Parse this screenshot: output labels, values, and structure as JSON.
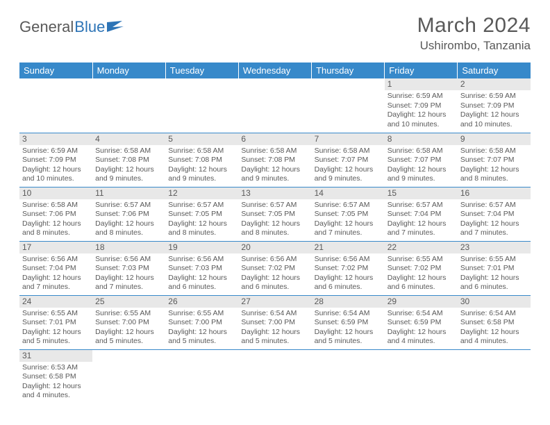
{
  "logo": {
    "text_a": "General",
    "text_b": "Blue"
  },
  "header": {
    "month_title": "March 2024",
    "location": "Ushirombo, Tanzania"
  },
  "colors": {
    "accent": "#3789ca",
    "header_text": "#ffffff",
    "daynum_bg": "#e8e8e8",
    "body_text": "#595959"
  },
  "weekdays": [
    "Sunday",
    "Monday",
    "Tuesday",
    "Wednesday",
    "Thursday",
    "Friday",
    "Saturday"
  ],
  "cells": [
    {
      "day": "",
      "text": ""
    },
    {
      "day": "",
      "text": ""
    },
    {
      "day": "",
      "text": ""
    },
    {
      "day": "",
      "text": ""
    },
    {
      "day": "",
      "text": ""
    },
    {
      "day": "1",
      "text": "Sunrise: 6:59 AM\nSunset: 7:09 PM\nDaylight: 12 hours and 10 minutes."
    },
    {
      "day": "2",
      "text": "Sunrise: 6:59 AM\nSunset: 7:09 PM\nDaylight: 12 hours and 10 minutes."
    },
    {
      "day": "3",
      "text": "Sunrise: 6:59 AM\nSunset: 7:09 PM\nDaylight: 12 hours and 10 minutes."
    },
    {
      "day": "4",
      "text": "Sunrise: 6:58 AM\nSunset: 7:08 PM\nDaylight: 12 hours and 9 minutes."
    },
    {
      "day": "5",
      "text": "Sunrise: 6:58 AM\nSunset: 7:08 PM\nDaylight: 12 hours and 9 minutes."
    },
    {
      "day": "6",
      "text": "Sunrise: 6:58 AM\nSunset: 7:08 PM\nDaylight: 12 hours and 9 minutes."
    },
    {
      "day": "7",
      "text": "Sunrise: 6:58 AM\nSunset: 7:07 PM\nDaylight: 12 hours and 9 minutes."
    },
    {
      "day": "8",
      "text": "Sunrise: 6:58 AM\nSunset: 7:07 PM\nDaylight: 12 hours and 9 minutes."
    },
    {
      "day": "9",
      "text": "Sunrise: 6:58 AM\nSunset: 7:07 PM\nDaylight: 12 hours and 8 minutes."
    },
    {
      "day": "10",
      "text": "Sunrise: 6:58 AM\nSunset: 7:06 PM\nDaylight: 12 hours and 8 minutes."
    },
    {
      "day": "11",
      "text": "Sunrise: 6:57 AM\nSunset: 7:06 PM\nDaylight: 12 hours and 8 minutes."
    },
    {
      "day": "12",
      "text": "Sunrise: 6:57 AM\nSunset: 7:05 PM\nDaylight: 12 hours and 8 minutes."
    },
    {
      "day": "13",
      "text": "Sunrise: 6:57 AM\nSunset: 7:05 PM\nDaylight: 12 hours and 8 minutes."
    },
    {
      "day": "14",
      "text": "Sunrise: 6:57 AM\nSunset: 7:05 PM\nDaylight: 12 hours and 7 minutes."
    },
    {
      "day": "15",
      "text": "Sunrise: 6:57 AM\nSunset: 7:04 PM\nDaylight: 12 hours and 7 minutes."
    },
    {
      "day": "16",
      "text": "Sunrise: 6:57 AM\nSunset: 7:04 PM\nDaylight: 12 hours and 7 minutes."
    },
    {
      "day": "17",
      "text": "Sunrise: 6:56 AM\nSunset: 7:04 PM\nDaylight: 12 hours and 7 minutes."
    },
    {
      "day": "18",
      "text": "Sunrise: 6:56 AM\nSunset: 7:03 PM\nDaylight: 12 hours and 7 minutes."
    },
    {
      "day": "19",
      "text": "Sunrise: 6:56 AM\nSunset: 7:03 PM\nDaylight: 12 hours and 6 minutes."
    },
    {
      "day": "20",
      "text": "Sunrise: 6:56 AM\nSunset: 7:02 PM\nDaylight: 12 hours and 6 minutes."
    },
    {
      "day": "21",
      "text": "Sunrise: 6:56 AM\nSunset: 7:02 PM\nDaylight: 12 hours and 6 minutes."
    },
    {
      "day": "22",
      "text": "Sunrise: 6:55 AM\nSunset: 7:02 PM\nDaylight: 12 hours and 6 minutes."
    },
    {
      "day": "23",
      "text": "Sunrise: 6:55 AM\nSunset: 7:01 PM\nDaylight: 12 hours and 6 minutes."
    },
    {
      "day": "24",
      "text": "Sunrise: 6:55 AM\nSunset: 7:01 PM\nDaylight: 12 hours and 5 minutes."
    },
    {
      "day": "25",
      "text": "Sunrise: 6:55 AM\nSunset: 7:00 PM\nDaylight: 12 hours and 5 minutes."
    },
    {
      "day": "26",
      "text": "Sunrise: 6:55 AM\nSunset: 7:00 PM\nDaylight: 12 hours and 5 minutes."
    },
    {
      "day": "27",
      "text": "Sunrise: 6:54 AM\nSunset: 7:00 PM\nDaylight: 12 hours and 5 minutes."
    },
    {
      "day": "28",
      "text": "Sunrise: 6:54 AM\nSunset: 6:59 PM\nDaylight: 12 hours and 5 minutes."
    },
    {
      "day": "29",
      "text": "Sunrise: 6:54 AM\nSunset: 6:59 PM\nDaylight: 12 hours and 4 minutes."
    },
    {
      "day": "30",
      "text": "Sunrise: 6:54 AM\nSunset: 6:58 PM\nDaylight: 12 hours and 4 minutes."
    },
    {
      "day": "31",
      "text": "Sunrise: 6:53 AM\nSunset: 6:58 PM\nDaylight: 12 hours and 4 minutes."
    },
    {
      "day": "",
      "text": ""
    },
    {
      "day": "",
      "text": ""
    },
    {
      "day": "",
      "text": ""
    },
    {
      "day": "",
      "text": ""
    },
    {
      "day": "",
      "text": ""
    },
    {
      "day": "",
      "text": ""
    }
  ]
}
